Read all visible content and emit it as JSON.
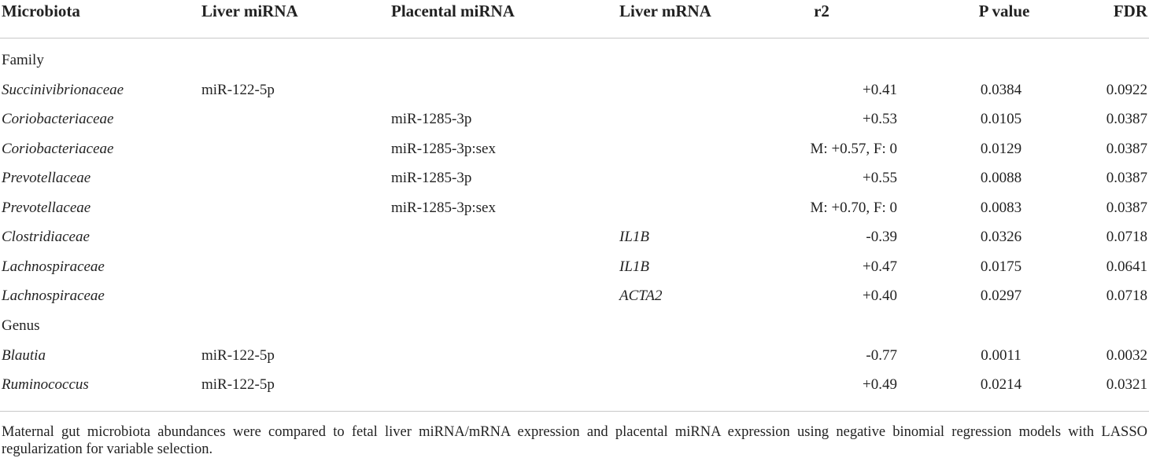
{
  "table": {
    "headers": [
      "Microbiota",
      "Liver miRNA",
      "Placental miRNA",
      "Liver mRNA",
      "r2",
      "P value",
      "FDR"
    ],
    "sections": [
      {
        "label": "Family",
        "rows": [
          [
            "Succinivibrionaceae",
            "miR-122-5p",
            null,
            null,
            "+0.41",
            "0.0384",
            "0.0922"
          ],
          [
            "Coriobacteriaceae",
            null,
            "miR-1285-3p",
            null,
            "+0.53",
            "0.0105",
            "0.0387"
          ],
          [
            "Coriobacteriaceae",
            null,
            "miR-1285-3p:sex",
            null,
            "M: +0.57, F: 0",
            "0.0129",
            "0.0387"
          ],
          [
            "Prevotellaceae",
            null,
            "miR-1285-3p",
            null,
            "+0.55",
            "0.0088",
            "0.0387"
          ],
          [
            "Prevotellaceae",
            null,
            "miR-1285-3p:sex",
            null,
            "M: +0.70, F: 0",
            "0.0083",
            "0.0387"
          ],
          [
            "Clostridiaceae",
            null,
            null,
            "IL1B",
            "-0.39",
            "0.0326",
            "0.0718"
          ],
          [
            "Lachnospiraceae",
            null,
            null,
            "IL1B",
            "+0.47",
            "0.0175",
            "0.0641"
          ],
          [
            "Lachnospiraceae",
            null,
            null,
            "ACTA2",
            "+0.40",
            "0.0297",
            "0.0718"
          ]
        ]
      },
      {
        "label": "Genus",
        "rows": [
          [
            "Blautia",
            "miR-122-5p",
            null,
            null,
            "-0.77",
            "0.0011",
            "0.0032"
          ],
          [
            "Ruminococcus",
            "miR-122-5p",
            null,
            null,
            "+0.49",
            "0.0214",
            "0.0321"
          ]
        ]
      }
    ],
    "footnote": "Maternal gut microbiota abundances were compared to fetal liver miRNA/mRNA expression and placental miRNA expression using negative binomial regression models with LASSO regularization for variable selection."
  }
}
